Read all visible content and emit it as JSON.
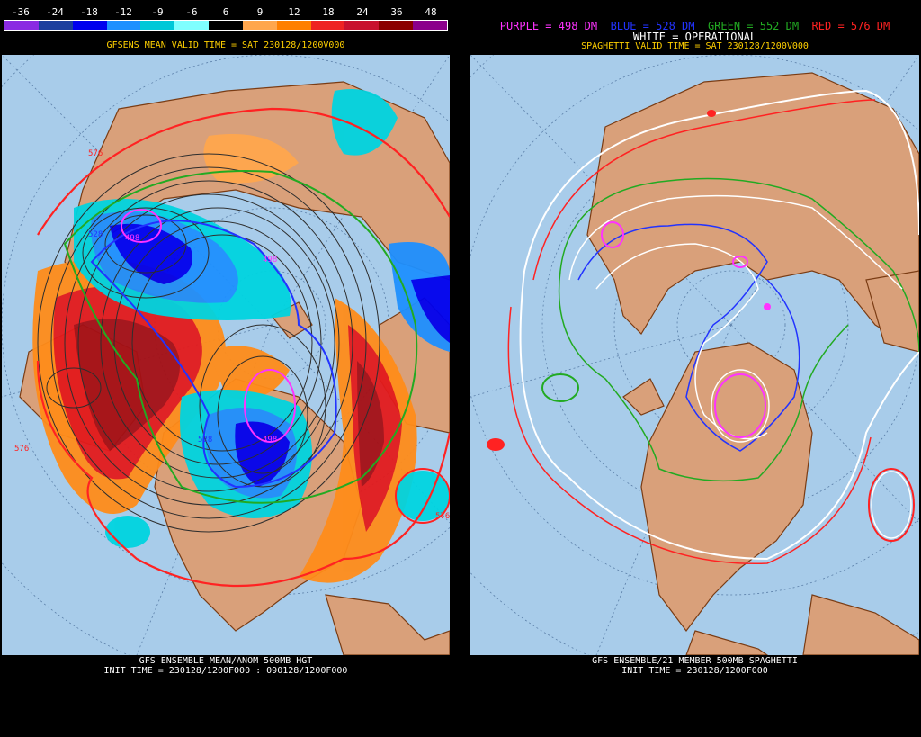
{
  "left": {
    "colorbar": {
      "labels": [
        "-36",
        "-24",
        "-18",
        "-12",
        "-9",
        "-6",
        "6",
        "9",
        "12",
        "18",
        "24",
        "36",
        "48"
      ],
      "colors": [
        "#8a2be2",
        "#1c3f9e",
        "#0000ee",
        "#1e90ff",
        "#00c8d8",
        "#7fffff",
        "#000000",
        "#ffa64d",
        "#ff7f00",
        "#ee2222",
        "#c8102e",
        "#8b0000",
        "#8b008b"
      ]
    },
    "valid_time": "GFSENS MEAN VALID TIME = SAT 230128/1200V000",
    "footer_line1": "GFS ENSEMBLE MEAN/ANOM 500MB HGT",
    "footer_line2": "INIT TIME = 230128/1200F000 : 090128/1200F000",
    "contour_labels": [
      "576",
      "576",
      "528",
      "528",
      "498",
      "498",
      "498",
      "576",
      "576",
      "576"
    ]
  },
  "right": {
    "legend": [
      {
        "text": "PURPLE = 498 DM",
        "color": "#ff33ff"
      },
      {
        "text": "BLUE = 528 DM",
        "color": "#2233ff"
      },
      {
        "text": "GREEN = 552 DM",
        "color": "#22aa22"
      },
      {
        "text": "RED = 576 DM",
        "color": "#ff2222"
      }
    ],
    "operational": "WHITE = OPERATIONAL",
    "valid_time": "SPAGHETTI VALID TIME = SAT 230128/1200V000",
    "footer_line1": "GFS ENSEMBLE/21 MEMBER 500MB SPAGHETTI",
    "footer_line2": "INIT TIME = 230128/1200F000"
  },
  "colors": {
    "ocean": "#a8ccea",
    "land": "#d9a07a",
    "coast": "#7a3c14",
    "header_text": "#ffd000"
  }
}
